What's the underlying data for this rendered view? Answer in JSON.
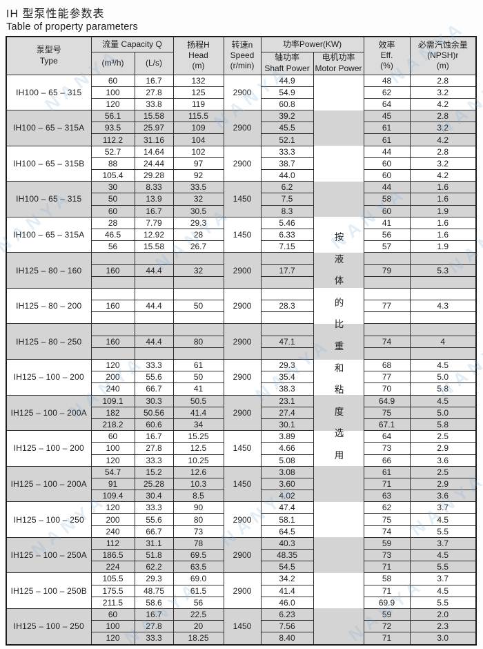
{
  "page": {
    "title_zh": "IH 型泵性能参数表",
    "title_en": "Table of property parameters"
  },
  "table": {
    "header": {
      "type_lines": [
        "泵型号",
        "Type"
      ],
      "capacity_label": "流量 Capacity Q",
      "capacity_sub": [
        "(m³/h)",
        "(L/s)"
      ],
      "head_lines": [
        "扬程H",
        "Head",
        "(m)"
      ],
      "speed_lines": [
        "转速n",
        "Speed",
        "(r/min)"
      ],
      "power_label": "功率Power(KW)",
      "power_sub": [
        [
          "轴功率",
          "Shaft Power"
        ],
        [
          "电机功率",
          "Motor Power"
        ]
      ],
      "eff_lines": [
        "效率",
        "Eff.",
        "(%)"
      ],
      "npsh_lines": [
        "必需汽蚀余量",
        "(NPSH)r",
        "(m)"
      ]
    },
    "motor_power_note": "按液体的比重和粘度选用",
    "groups": [
      {
        "type": "IH100 – 65 – 315",
        "speed": "2900",
        "shaded": false,
        "single": false,
        "rows": [
          [
            "60",
            "16.7",
            "132",
            "44.9",
            "48",
            "2.8"
          ],
          [
            "100",
            "27.8",
            "125",
            "54.9",
            "62",
            "3.2"
          ],
          [
            "120",
            "33.8",
            "119",
            "60.8",
            "64",
            "4.2"
          ]
        ]
      },
      {
        "type": "IH100 – 65 – 315A",
        "speed": "2900",
        "shaded": true,
        "single": false,
        "rows": [
          [
            "56.1",
            "15.58",
            "115.5",
            "39.2",
            "45",
            "2.8"
          ],
          [
            "93.5",
            "25.97",
            "109",
            "45.5",
            "61",
            "3.2"
          ],
          [
            "112.2",
            "31.16",
            "104",
            "52.1",
            "61",
            "4.2"
          ]
        ]
      },
      {
        "type": "IH100 – 65 – 315B",
        "speed": "2900",
        "shaded": false,
        "single": false,
        "rows": [
          [
            "52.7",
            "14.64",
            "102",
            "33.3",
            "44",
            "2.8"
          ],
          [
            "88",
            "24.44",
            "97",
            "38.7",
            "60",
            "3.2"
          ],
          [
            "105.4",
            "29.28",
            "92",
            "44.0",
            "60",
            "4.2"
          ]
        ]
      },
      {
        "type": "IH100 – 65 – 315",
        "speed": "1450",
        "shaded": true,
        "single": false,
        "rows": [
          [
            "30",
            "8.33",
            "33.5",
            "6.2",
            "44",
            "1.6"
          ],
          [
            "50",
            "13.9",
            "32",
            "7.5",
            "58",
            "1.6"
          ],
          [
            "60",
            "16.7",
            "30.5",
            "8.3",
            "60",
            "1.9"
          ]
        ]
      },
      {
        "type": "IH100 – 65 – 315A",
        "speed": "1450",
        "shaded": false,
        "single": false,
        "rows": [
          [
            "28",
            "7.79",
            "29.3",
            "5.46",
            "41",
            "1.6"
          ],
          [
            "46.5",
            "12.92",
            "28",
            "6.33",
            "56",
            "1.6"
          ],
          [
            "56",
            "15.58",
            "26.7",
            "7.15",
            "57",
            "1.9"
          ]
        ]
      },
      {
        "type": "IH125 – 80 – 160",
        "speed": "2900",
        "shaded": true,
        "single": true,
        "row": [
          "160",
          "44.4",
          "32",
          "17.7",
          "79",
          "5.3"
        ]
      },
      {
        "type": "IH125 – 80 – 200",
        "speed": "2900",
        "shaded": false,
        "single": true,
        "row": [
          "160",
          "44.4",
          "50",
          "28.3",
          "77",
          "4.3"
        ]
      },
      {
        "type": "IH125 – 80 – 250",
        "speed": "2900",
        "shaded": true,
        "single": true,
        "row": [
          "160",
          "44.4",
          "80",
          "47.1",
          "74",
          "4"
        ]
      },
      {
        "type": "IH125 – 100 – 200",
        "speed": "2900",
        "shaded": false,
        "single": false,
        "rows": [
          [
            "120",
            "33.3",
            "61",
            "29.3",
            "68",
            "4.5"
          ],
          [
            "200",
            "55.6",
            "50",
            "35.4",
            "77",
            "5.0"
          ],
          [
            "240",
            "66.7",
            "41",
            "38.3",
            "70",
            "5.8"
          ]
        ]
      },
      {
        "type": "IH125 – 100 – 200A",
        "speed": "2900",
        "shaded": true,
        "single": false,
        "rows": [
          [
            "109.1",
            "30.3",
            "50.5",
            "23.1",
            "64.9",
            "4.5"
          ],
          [
            "182",
            "50.56",
            "41.4",
            "27.4",
            "75",
            "5.0"
          ],
          [
            "218.2",
            "60.6",
            "34",
            "30.1",
            "67.1",
            "5.8"
          ]
        ]
      },
      {
        "type": "IH125 – 100 – 200",
        "speed": "1450",
        "shaded": false,
        "single": false,
        "rows": [
          [
            "60",
            "16.7",
            "15.25",
            "3.89",
            "64",
            "2.5"
          ],
          [
            "100",
            "27.8",
            "12.5",
            "4.66",
            "73",
            "2.9"
          ],
          [
            "120",
            "33.3",
            "10.25",
            "5.08",
            "66",
            "3.6"
          ]
        ]
      },
      {
        "type": "IH125 – 100 – 200A",
        "speed": "1450",
        "shaded": true,
        "single": false,
        "rows": [
          [
            "54.7",
            "15.2",
            "12.6",
            "3.08",
            "61",
            "2.5"
          ],
          [
            "91",
            "25.28",
            "10.3",
            "3.60",
            "71",
            "2.9"
          ],
          [
            "109.4",
            "30.4",
            "8.5",
            "4.02",
            "63",
            "3.6"
          ]
        ]
      },
      {
        "type": "IH125 – 100 – 250",
        "speed": "2900",
        "shaded": false,
        "single": false,
        "rows": [
          [
            "120",
            "33.3",
            "90",
            "47.4",
            "62",
            "3.7"
          ],
          [
            "200",
            "55.6",
            "80",
            "58.1",
            "75",
            "4.5"
          ],
          [
            "240",
            "66.7",
            "73",
            "64.5",
            "74",
            "5.5"
          ]
        ]
      },
      {
        "type": "IH125 – 100 – 250A",
        "speed": "2900",
        "shaded": true,
        "single": false,
        "rows": [
          [
            "112",
            "31.1",
            "78",
            "40.3",
            "59",
            "3.7"
          ],
          [
            "186.5",
            "51.8",
            "69.5",
            "48.35",
            "73",
            "4.5"
          ],
          [
            "224",
            "62.2",
            "63.5",
            "54.5",
            "71",
            "5.5"
          ]
        ]
      },
      {
        "type": "IH125 – 100 – 250B",
        "speed": "2900",
        "shaded": false,
        "single": false,
        "rows": [
          [
            "105.5",
            "29.3",
            "69.0",
            "34.2",
            "58",
            "3.7"
          ],
          [
            "175.5",
            "48.75",
            "61.5",
            "41.4",
            "71",
            "4.5"
          ],
          [
            "211.5",
            "58.6",
            "56",
            "46.0",
            "69.9",
            "5.5"
          ]
        ]
      },
      {
        "type": "IH125 – 100 – 250",
        "speed": "1450",
        "shaded": true,
        "single": false,
        "rows": [
          [
            "60",
            "16.7",
            "22.5",
            "6.23",
            "59",
            "2.0"
          ],
          [
            "100",
            "27.8",
            "20",
            "7.56",
            "72",
            "2.3"
          ],
          [
            "120",
            "33.3",
            "18.25",
            "8.40",
            "71",
            "3.0"
          ]
        ]
      }
    ]
  },
  "watermark": {
    "text": "NANYA",
    "color": "#7fb0d9"
  }
}
